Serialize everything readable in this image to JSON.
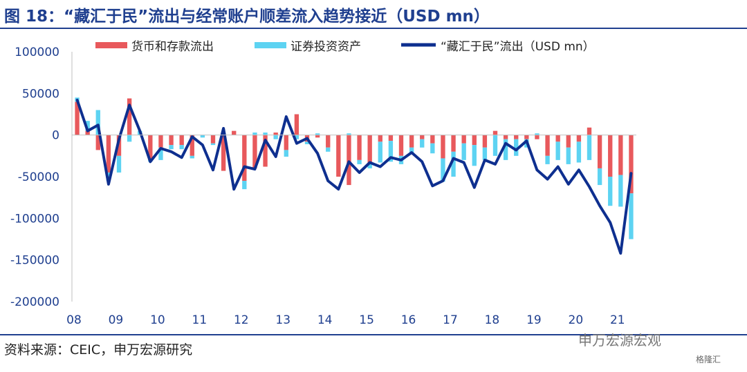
{
  "title": "图 18：“藏汇于民”流出与经常账户顺差流入趋势接近（USD mn）",
  "source": "资料来源：CEIC，申万宏源研究",
  "watermark": "申万宏源宏观",
  "watermark_small": "格隆汇",
  "colors": {
    "deposit": "#e8595c",
    "securities": "#5dd3f2",
    "line": "#0e2f8f",
    "title": "#1f3f8f"
  },
  "chart_data": {
    "type": "bar",
    "x_ticks": [
      "08",
      "09",
      "10",
      "11",
      "12",
      "13",
      "14",
      "15",
      "16",
      "17",
      "18",
      "19",
      "20",
      "21"
    ],
    "ylim": [
      -200000,
      100000
    ],
    "y_ticks": [
      100000,
      50000,
      0,
      -50000,
      -100000,
      -150000,
      -200000
    ],
    "y_tick_labels": [
      "100000",
      "50000",
      "0",
      "-50000",
      "-100000",
      "-150000",
      "-200000"
    ],
    "grid": false,
    "legend_position": "top",
    "quarters": [
      "2008Q1",
      "2008Q2",
      "2008Q3",
      "2008Q4",
      "2009Q1",
      "2009Q2",
      "2009Q3",
      "2009Q4",
      "2010Q1",
      "2010Q2",
      "2010Q3",
      "2010Q4",
      "2011Q1",
      "2011Q2",
      "2011Q3",
      "2011Q4",
      "2012Q1",
      "2012Q2",
      "2012Q3",
      "2012Q4",
      "2013Q1",
      "2013Q2",
      "2013Q3",
      "2013Q4",
      "2014Q1",
      "2014Q2",
      "2014Q3",
      "2014Q4",
      "2015Q1",
      "2015Q2",
      "2015Q3",
      "2015Q4",
      "2016Q1",
      "2016Q2",
      "2016Q3",
      "2016Q4",
      "2017Q1",
      "2017Q2",
      "2017Q3",
      "2017Q4",
      "2018Q1",
      "2018Q2",
      "2018Q3",
      "2018Q4",
      "2019Q1",
      "2019Q2",
      "2019Q3",
      "2019Q4",
      "2020Q1",
      "2020Q2",
      "2020Q3",
      "2020Q4",
      "2021Q1",
      "2021Q2"
    ],
    "series": [
      {
        "name": "货币和存款流出",
        "kind": "bar",
        "values": [
          40000,
          5000,
          -18000,
          -45000,
          -25000,
          44000,
          0,
          -30000,
          -15000,
          -12000,
          -12000,
          -25000,
          0,
          -10000,
          -43000,
          5000,
          -55000,
          -40000,
          -38000,
          3000,
          -18000,
          25000,
          -8000,
          -3000,
          -15000,
          -50000,
          -60000,
          -30000,
          -35000,
          -8000,
          -7000,
          -25000,
          -15000,
          -5000,
          -10000,
          -28000,
          -20000,
          -10000,
          -12000,
          -15000,
          5000,
          -5000,
          -5000,
          -5000,
          -5000,
          -25000,
          -8000,
          -15000,
          -8000,
          9000,
          -40000,
          -50000,
          -48000,
          -70000
        ]
      },
      {
        "name": "证券投资资产",
        "kind": "bar",
        "values": [
          5000,
          12000,
          30000,
          -10000,
          -20000,
          -8000,
          5000,
          -2000,
          -15000,
          -5000,
          -5000,
          -3000,
          -3000,
          -2000,
          3000,
          0,
          -10000,
          3000,
          3000,
          -5000,
          -8000,
          -5000,
          -3000,
          2000,
          -5000,
          0,
          2000,
          -5000,
          -5000,
          -25000,
          -25000,
          -10000,
          -8000,
          -10000,
          -12000,
          -28000,
          -30000,
          -20000,
          -25000,
          -15000,
          -25000,
          -25000,
          -20000,
          -10000,
          2000,
          -10000,
          -22000,
          -20000,
          -25000,
          -30000,
          -20000,
          -35000,
          -38000,
          -55000
        ]
      },
      {
        "name": "“藏汇于民”流出（USD mn）",
        "kind": "line",
        "values": [
          42000,
          5000,
          12000,
          -59000,
          -5000,
          36000,
          5000,
          -32000,
          -16000,
          -20000,
          -27000,
          -2000,
          -12000,
          -42000,
          8000,
          -65000,
          -38000,
          -41000,
          -6000,
          -26000,
          22000,
          -10000,
          -4000,
          -22000,
          -55000,
          -65000,
          -32000,
          -45000,
          -33000,
          -38000,
          -27000,
          -30000,
          -21000,
          -32000,
          -61000,
          -55000,
          -28000,
          -33000,
          -63000,
          -30000,
          -35000,
          -10000,
          -18000,
          -7000,
          -42000,
          -53000,
          -38000,
          -59000,
          -42000,
          -62000,
          -85000,
          -105000,
          -142000,
          -46000
        ]
      }
    ]
  }
}
